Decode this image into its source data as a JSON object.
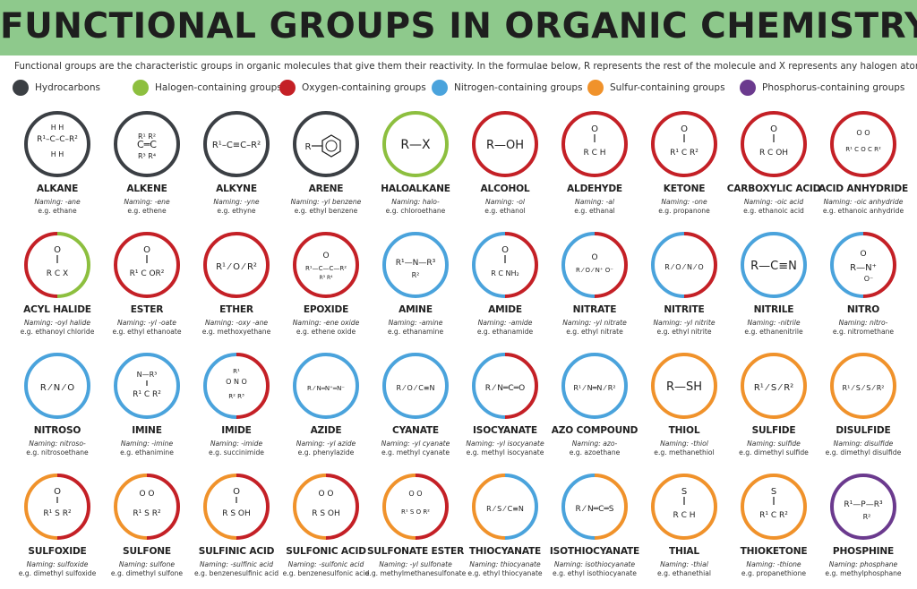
{
  "title": "FUNCTIONAL GROUPS IN ORGANIC CHEMISTRY",
  "intro": "Functional groups are the characteristic groups in organic molecules that give them their reactivity. In the formulae below, R represents the rest of the molecule and X represents any halogen atom.",
  "colors": {
    "hydrocarbons": "#3b3f44",
    "halogen": "#8dbf3f",
    "oxygen": "#c42026",
    "nitrogen": "#4aa3dc",
    "sulfur": "#f0922b",
    "phosphorus": "#6b3a8e",
    "header": "#8ec98c"
  },
  "legend": [
    {
      "key": "hydrocarbons",
      "label": "Hydrocarbons"
    },
    {
      "key": "halogen",
      "label": "Halogen-containing groups"
    },
    {
      "key": "oxygen",
      "label": "Oxygen-containing groups"
    },
    {
      "key": "nitrogen",
      "label": "Nitrogen-containing groups"
    },
    {
      "key": "sulfur",
      "label": "Sulfur-containing groups"
    },
    {
      "key": "phosphorus",
      "label": "Phosphorus-containing groups"
    }
  ],
  "groups": [
    {
      "name": "ALKANE",
      "naming": "Naming: -ane",
      "example": "e.g. ethane",
      "ring": [
        "hydrocarbons"
      ],
      "icon": "alkane-structure"
    },
    {
      "name": "ALKENE",
      "naming": "Naming: -ene",
      "example": "e.g. ethene",
      "ring": [
        "hydrocarbons"
      ],
      "icon": "alkene-structure"
    },
    {
      "name": "ALKYNE",
      "naming": "Naming: -yne",
      "example": "e.g. ethyne",
      "ring": [
        "hydrocarbons"
      ],
      "icon": "alkyne-structure"
    },
    {
      "name": "ARENE",
      "naming": "Naming: -yl benzene",
      "example": "e.g. ethyl benzene",
      "ring": [
        "hydrocarbons"
      ],
      "icon": "arene-structure"
    },
    {
      "name": "HALOALKANE",
      "naming": "Naming: halo-",
      "example": "e.g. chloroethane",
      "ring": [
        "halogen"
      ],
      "icon": "haloalkane-structure"
    },
    {
      "name": "ALCOHOL",
      "naming": "Naming: -ol",
      "example": "e.g. ethanol",
      "ring": [
        "oxygen"
      ],
      "icon": "alcohol-structure"
    },
    {
      "name": "ALDEHYDE",
      "naming": "Naming: -al",
      "example": "e.g. ethanal",
      "ring": [
        "oxygen"
      ],
      "icon": "aldehyde-structure"
    },
    {
      "name": "KETONE",
      "naming": "Naming: -one",
      "example": "e.g. propanone",
      "ring": [
        "oxygen"
      ],
      "icon": "ketone-structure"
    },
    {
      "name": "CARBOXYLIC ACID",
      "naming": "Naming: -oic acid",
      "example": "e.g. ethanoic acid",
      "ring": [
        "oxygen"
      ],
      "icon": "carboxylic-acid-structure"
    },
    {
      "name": "ACID ANHYDRIDE",
      "naming": "Naming: -oic anhydride",
      "example": "e.g. ethanoic anhydride",
      "ring": [
        "oxygen"
      ],
      "icon": "acid-anhydride-structure"
    },
    {
      "name": "ACYL HALIDE",
      "naming": "Naming: -oyl halide",
      "example": "e.g. ethanoyl chloride",
      "ring": [
        "oxygen",
        "halogen"
      ],
      "icon": "acyl-halide-structure"
    },
    {
      "name": "ESTER",
      "naming": "Naming: -yl -oate",
      "example": "e.g. ethyl ethanoate",
      "ring": [
        "oxygen"
      ],
      "icon": "ester-structure"
    },
    {
      "name": "ETHER",
      "naming": "Naming: -oxy -ane",
      "example": "e.g. methoxyethane",
      "ring": [
        "oxygen"
      ],
      "icon": "ether-structure"
    },
    {
      "name": "EPOXIDE",
      "naming": "Naming: -ene oxide",
      "example": "e.g. ethene oxide",
      "ring": [
        "oxygen"
      ],
      "icon": "epoxide-structure"
    },
    {
      "name": "AMINE",
      "naming": "Naming: -amine",
      "example": "e.g. ethanamine",
      "ring": [
        "nitrogen"
      ],
      "icon": "amine-structure"
    },
    {
      "name": "AMIDE",
      "naming": "Naming: -amide",
      "example": "e.g. ethanamide",
      "ring": [
        "nitrogen",
        "oxygen"
      ],
      "icon": "amide-structure"
    },
    {
      "name": "NITRATE",
      "naming": "Naming: -yl nitrate",
      "example": "e.g. ethyl nitrate",
      "ring": [
        "nitrogen",
        "oxygen"
      ],
      "icon": "nitrate-structure"
    },
    {
      "name": "NITRITE",
      "naming": "Naming: -yl nitrite",
      "example": "e.g. ethyl nitrite",
      "ring": [
        "nitrogen",
        "oxygen"
      ],
      "icon": "nitrite-structure"
    },
    {
      "name": "NITRILE",
      "naming": "Naming: -nitrile",
      "example": "e.g. ethanenitrile",
      "ring": [
        "nitrogen"
      ],
      "icon": "nitrile-structure"
    },
    {
      "name": "NITRO",
      "naming": "Naming: nitro-",
      "example": "e.g. nitromethane",
      "ring": [
        "nitrogen",
        "oxygen"
      ],
      "icon": "nitro-structure"
    },
    {
      "name": "NITROSO",
      "naming": "Naming: nitroso-",
      "example": "e.g. nitrosoethane",
      "ring": [
        "nitrogen"
      ],
      "icon": "nitroso-structure"
    },
    {
      "name": "IMINE",
      "naming": "Naming: -imine",
      "example": "e.g. ethanimine",
      "ring": [
        "nitrogen"
      ],
      "icon": "imine-structure"
    },
    {
      "name": "IMIDE",
      "naming": "Naming: -imide",
      "example": "e.g. succinimide",
      "ring": [
        "nitrogen",
        "oxygen"
      ],
      "icon": "imide-structure"
    },
    {
      "name": "AZIDE",
      "naming": "Naming: -yl azide",
      "example": "e.g. phenylazide",
      "ring": [
        "nitrogen"
      ],
      "icon": "azide-structure"
    },
    {
      "name": "CYANATE",
      "naming": "Naming: -yl cyanate",
      "example": "e.g. methyl cyanate",
      "ring": [
        "nitrogen"
      ],
      "icon": "cyanate-structure"
    },
    {
      "name": "ISOCYANATE",
      "naming": "Naming: -yl isocyanate",
      "example": "e.g. methyl isocyanate",
      "ring": [
        "nitrogen",
        "oxygen"
      ],
      "icon": "isocyanate-structure"
    },
    {
      "name": "AZO COMPOUND",
      "naming": "Naming: azo-",
      "example": "e.g. azoethane",
      "ring": [
        "nitrogen"
      ],
      "icon": "azo-compound-structure"
    },
    {
      "name": "THIOL",
      "naming": "Naming: -thiol",
      "example": "e.g. methanethiol",
      "ring": [
        "sulfur"
      ],
      "icon": "thiol-structure"
    },
    {
      "name": "SULFIDE",
      "naming": "Naming: sulfide",
      "example": "e.g. dimethyl sulfide",
      "ring": [
        "sulfur"
      ],
      "icon": "sulfide-structure"
    },
    {
      "name": "DISULFIDE",
      "naming": "Naming: disulfide",
      "example": "e.g. dimethyl disulfide",
      "ring": [
        "sulfur"
      ],
      "icon": "disulfide-structure"
    },
    {
      "name": "SULFOXIDE",
      "naming": "Naming: sulfoxide",
      "example": "e.g. dimethyl sulfoxide",
      "ring": [
        "sulfur",
        "oxygen"
      ],
      "icon": "sulfoxide-structure"
    },
    {
      "name": "SULFONE",
      "naming": "Naming: sulfone",
      "example": "e.g. dimethyl sulfone",
      "ring": [
        "sulfur",
        "oxygen"
      ],
      "icon": "sulfone-structure"
    },
    {
      "name": "SULFINIC ACID",
      "naming": "Naming: -sulfinic acid",
      "example": "e.g. benzenesulfinic acid",
      "ring": [
        "sulfur",
        "oxygen"
      ],
      "icon": "sulfinic-acid-structure"
    },
    {
      "name": "SULFONIC ACID",
      "naming": "Naming: -sulfonic acid",
      "example": "e.g. benzenesulfonic acid",
      "ring": [
        "sulfur",
        "oxygen"
      ],
      "icon": "sulfonic-acid-structure"
    },
    {
      "name": "SULFONATE ESTER",
      "naming": "Naming: -yl sulfonate",
      "example": "e.g. methylmethanesulfonate",
      "ring": [
        "sulfur",
        "oxygen"
      ],
      "icon": "sulfonate-ester-structure"
    },
    {
      "name": "THIOCYANATE",
      "naming": "Naming: thiocyanate",
      "example": "e.g. ethyl thiocyanate",
      "ring": [
        "sulfur",
        "nitrogen"
      ],
      "icon": "thiocyanate-structure"
    },
    {
      "name": "ISOTHIOCYANATE",
      "naming": "Naming: isothiocyanate",
      "example": "e.g. ethyl isothiocyanate",
      "ring": [
        "nitrogen",
        "sulfur"
      ],
      "icon": "isothiocyanate-structure"
    },
    {
      "name": "THIAL",
      "naming": "Naming: -thial",
      "example": "e.g. ethanethial",
      "ring": [
        "sulfur"
      ],
      "icon": "thial-structure"
    },
    {
      "name": "THIOKETONE",
      "naming": "Naming: -thione",
      "example": "e.g. propanethione",
      "ring": [
        "sulfur"
      ],
      "icon": "thioketone-structure"
    },
    {
      "name": "PHOSPHINE",
      "naming": "Naming: phosphane",
      "example": "e.g. methylphosphane",
      "ring": [
        "phosphorus"
      ],
      "icon": "phosphine-structure"
    }
  ]
}
